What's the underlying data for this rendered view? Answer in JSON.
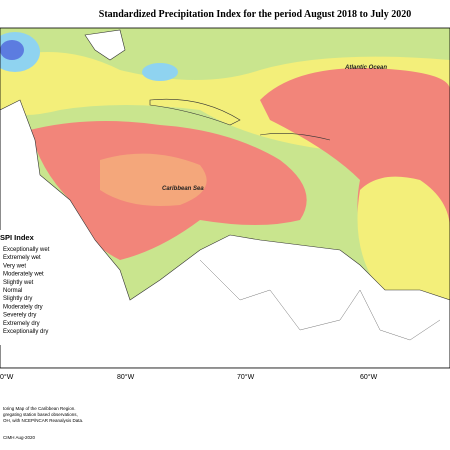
{
  "title": "Standardized Precipitation Index for the period August 2018 to July 2020",
  "labels": {
    "ocean": "Atlantic Ocean",
    "sea": "Caribbean Sea"
  },
  "legend": {
    "title": "SPI Index",
    "items": [
      "Exceptionally wet",
      "Extremely wet",
      "Very wet",
      "Moderately wet",
      "Slightly wet",
      "Normal",
      "Slightly dry",
      "Moderately dry",
      "Severely dry",
      "Extremely dry",
      "Exceptionally dry"
    ]
  },
  "longitudes": [
    "0°W",
    "80°W",
    "70°W",
    "60°W"
  ],
  "footer": {
    "lines": [
      "toring Map of the Caribbean Region.",
      "gregating station based observations,",
      "OH, with NCEP/NCAR Reanalysis Data."
    ],
    "credit": "CIMH Aug-2020"
  }
}
